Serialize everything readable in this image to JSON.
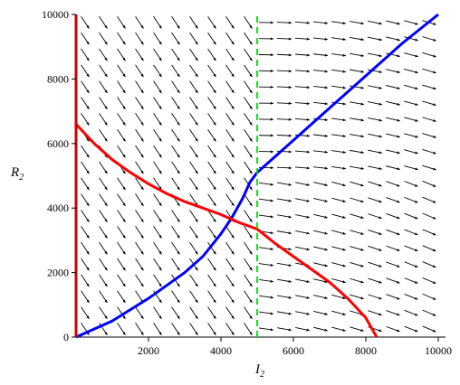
{
  "chart_data": {
    "type": "line",
    "title": "",
    "xlabel": {
      "main": "I",
      "sub": "2"
    },
    "ylabel": {
      "main": "R",
      "sub": "2"
    },
    "xlim": [
      0,
      10000
    ],
    "ylim": [
      0,
      10000
    ],
    "x_ticks": [
      2000,
      4000,
      6000,
      8000,
      10000
    ],
    "y_ticks": [
      0,
      2000,
      4000,
      6000,
      8000,
      10000
    ],
    "grid": false,
    "legend": "none",
    "series": [
      {
        "color": "#0000ff",
        "style": "solid",
        "points": [
          [
            0,
            0
          ],
          [
            1000,
            500
          ],
          [
            2000,
            1200
          ],
          [
            3000,
            2000
          ],
          [
            3500,
            2500
          ],
          [
            4000,
            3200
          ],
          [
            4300,
            3700
          ],
          [
            4600,
            4300
          ],
          [
            4800,
            4800
          ],
          [
            5000,
            5100
          ],
          [
            5500,
            5600
          ],
          [
            6000,
            6100
          ],
          [
            7000,
            7100
          ],
          [
            8000,
            8100
          ],
          [
            9000,
            9100
          ],
          [
            10000,
            10000
          ]
        ]
      },
      {
        "color": "#ff0000",
        "style": "solid",
        "points": [
          [
            0,
            6600
          ],
          [
            500,
            6000
          ],
          [
            1000,
            5500
          ],
          [
            1500,
            5100
          ],
          [
            2000,
            4750
          ],
          [
            2500,
            4450
          ],
          [
            3000,
            4200
          ],
          [
            3500,
            4000
          ],
          [
            4000,
            3800
          ],
          [
            4500,
            3550
          ],
          [
            5000,
            3350
          ],
          [
            5500,
            2900
          ],
          [
            6000,
            2500
          ],
          [
            6500,
            2100
          ],
          [
            7000,
            1700
          ],
          [
            7500,
            1200
          ],
          [
            8000,
            600
          ],
          [
            8300,
            0
          ]
        ]
      },
      {
        "color": "#00dd00",
        "style": "dashed",
        "points": [
          [
            5000,
            0
          ],
          [
            5000,
            10000
          ]
        ]
      },
      {
        "color": "#cc0000",
        "style": "solid",
        "points": [
          [
            0,
            0
          ],
          [
            0,
            10000
          ]
        ]
      }
    ],
    "direction_field": {
      "grid_x": [
        250,
        750,
        1250,
        1750,
        2250,
        2750,
        3250,
        3750,
        4250,
        4750,
        5250,
        5750,
        6250,
        6750,
        7250,
        7750,
        8250,
        8750,
        9250,
        9750
      ],
      "grid_y": [
        250,
        750,
        1250,
        1750,
        2250,
        2750,
        3250,
        3750,
        4250,
        4750,
        5250,
        5750,
        6250,
        6750,
        7250,
        7750,
        8250,
        8750,
        9250,
        9750
      ],
      "color": "#000000"
    }
  }
}
